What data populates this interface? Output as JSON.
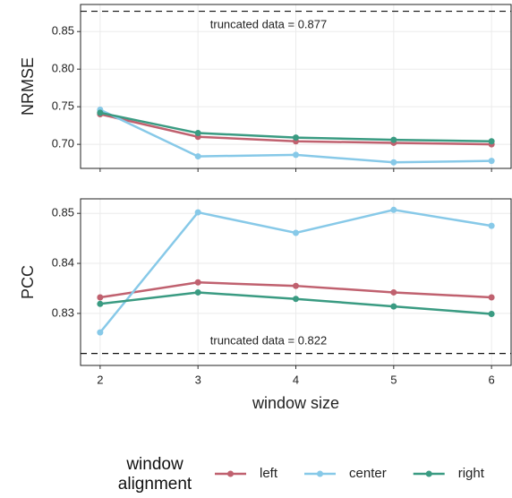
{
  "chart_data": [
    {
      "type": "line",
      "ylabel": "NRMSE",
      "x": [
        2,
        3,
        4,
        5,
        6
      ],
      "xlim": [
        1.8,
        6.2
      ],
      "xticks": [
        2,
        3,
        4,
        5,
        6
      ],
      "ylim": [
        0.668,
        0.886
      ],
      "yticks": [
        0.7,
        0.75,
        0.8,
        0.85
      ],
      "grid": true,
      "hline": 0.877,
      "hline_label": "truncated data = 0.877",
      "series": [
        {
          "name": "left",
          "color": "#c0616f",
          "values": [
            0.74,
            0.71,
            0.704,
            0.702,
            0.7
          ]
        },
        {
          "name": "center",
          "color": "#87c9e8",
          "values": [
            0.746,
            0.684,
            0.686,
            0.676,
            0.678
          ]
        },
        {
          "name": "right",
          "color": "#3a9b82",
          "values": [
            0.742,
            0.715,
            0.709,
            0.706,
            0.704
          ]
        }
      ]
    },
    {
      "type": "line",
      "ylabel": "PCC",
      "xlabel": "window size",
      "x": [
        2,
        3,
        4,
        5,
        6
      ],
      "xlim": [
        1.8,
        6.2
      ],
      "xticks": [
        2,
        3,
        4,
        5,
        6
      ],
      "ylim": [
        0.8196,
        0.8529
      ],
      "yticks": [
        0.83,
        0.84,
        0.85
      ],
      "grid": true,
      "hline": 0.822,
      "hline_label": "truncated data = 0.822",
      "legend": "bottom",
      "legend_title": "window alignment",
      "series": [
        {
          "name": "left",
          "color": "#c0616f",
          "values": [
            0.8332,
            0.8362,
            0.8355,
            0.8342,
            0.8332
          ]
        },
        {
          "name": "center",
          "color": "#87c9e8",
          "values": [
            0.8262,
            0.8502,
            0.8461,
            0.8507,
            0.8475
          ]
        },
        {
          "name": "right",
          "color": "#3a9b82",
          "values": [
            0.8319,
            0.8342,
            0.8329,
            0.8314,
            0.8299
          ]
        }
      ]
    }
  ]
}
